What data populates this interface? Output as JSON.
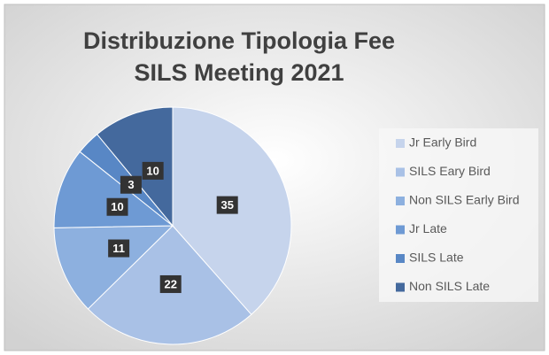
{
  "chart_data": {
    "type": "pie",
    "title": [
      "Distribuzione Tipologia Fee",
      "SILS Meeting 2021"
    ],
    "categories": [
      "Jr Early Bird",
      "SILS Eary Bird",
      "Non SILS Early Bird",
      "Jr Late",
      "SILS Late",
      "Non SILS Late"
    ],
    "values": [
      35,
      22,
      11,
      10,
      3,
      10
    ],
    "colors": [
      "#c6d4ec",
      "#a9c1e6",
      "#8db0df",
      "#6e9ad4",
      "#5887c5",
      "#44699d"
    ],
    "legend": "right"
  }
}
